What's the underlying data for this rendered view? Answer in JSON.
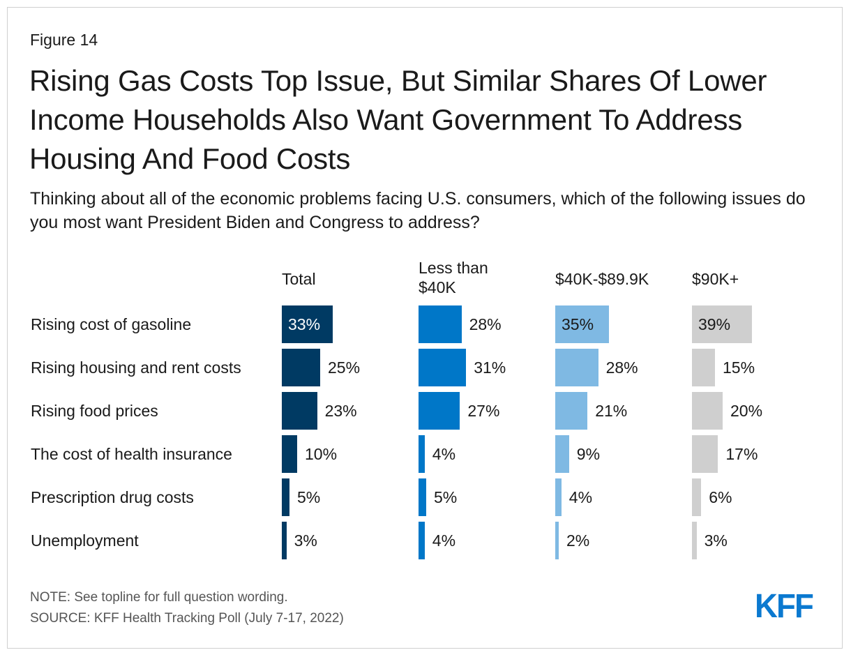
{
  "figure_label": "Figure 14",
  "title": "Rising Gas Costs Top Issue, But Similar Shares Of Lower Income Households Also Want Government To Address Housing And Food Costs",
  "subtitle": "Thinking about all of the economic problems facing U.S. consumers, which of the following issues do you most want President Biden and Congress to address?",
  "note": "NOTE: See topline for full question wording.",
  "source": "SOURCE: KFF Health Tracking Poll (July 7-17, 2022)",
  "logo_text": "KFF",
  "colors": {
    "total": "#003a63",
    "lt40k": "#0077c8",
    "mid": "#7fb9e3",
    "high": "#cfcfcf",
    "logo": "#0b79d0"
  },
  "chart_data": {
    "type": "bar",
    "orientation": "horizontal",
    "title": "Rising Gas Costs Top Issue, But Similar Shares Of Lower Income Households Also Want Government To Address Housing And Food Costs",
    "categories": [
      "Rising cost of gasoline",
      "Rising housing and rent costs",
      "Rising food prices",
      "The cost of health insurance",
      "Prescription drug costs",
      "Unemployment"
    ],
    "unit": "%",
    "xlim": [
      0,
      100
    ],
    "series": [
      {
        "name": "Total",
        "color": "#003a63",
        "values": [
          33,
          25,
          23,
          10,
          5,
          3
        ]
      },
      {
        "name": "Less than $40K",
        "color": "#0077c8",
        "values": [
          28,
          31,
          27,
          4,
          5,
          4
        ]
      },
      {
        "name": "$40K-$89.9K",
        "color": "#7fb9e3",
        "values": [
          35,
          28,
          21,
          9,
          4,
          2
        ]
      },
      {
        "name": "$90K+",
        "color": "#cfcfcf",
        "values": [
          39,
          15,
          20,
          17,
          6,
          3
        ]
      }
    ]
  }
}
